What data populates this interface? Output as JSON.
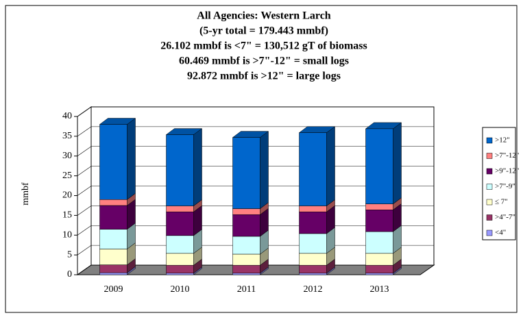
{
  "chart_data": {
    "type": "bar3d_stacked",
    "title": [
      "All Agencies: Western Larch",
      "(5-yr total = 179.443 mmbf)",
      "26.102 mmbf is <7\" = 130,512 gT of biomass",
      "60.469 mmbf is >7\"-12\" = small logs",
      "92.872 mmbf is >12\" = large logs"
    ],
    "y_label": "mmbf",
    "categories": [
      "2009",
      "2010",
      "2011",
      "2012",
      "2013"
    ],
    "series": [
      {
        "name": "<4\"",
        "color": "#9999ff",
        "values": [
          0.5,
          0.4,
          0.4,
          0.4,
          0.4
        ]
      },
      {
        "name": ">4\"-7\"",
        "color": "#993366",
        "values": [
          2,
          2,
          2,
          2,
          2
        ]
      },
      {
        "name": "≤ 7\"",
        "color": "#ffffcc",
        "values": [
          4,
          3,
          2.8,
          3,
          3
        ]
      },
      {
        "name": ">7\"-9\"",
        "color": "#ccffff",
        "values": [
          5,
          4.5,
          4.5,
          5,
          5.5
        ]
      },
      {
        "name": ">9\"-12\"",
        "color": "#660066",
        "values": [
          6,
          6,
          5.5,
          5.5,
          5.5
        ]
      },
      {
        "name": ">7\"-12\"",
        "color": "#ff8080",
        "values": [
          1.5,
          1.5,
          1.5,
          1.5,
          1.5
        ]
      },
      {
        "name": ">12\"",
        "color": "#0066cc",
        "values": [
          19,
          18,
          18,
          18.5,
          19
        ]
      }
    ],
    "ylim": [
      0,
      40
    ],
    "yticks": [
      0,
      5,
      10,
      15,
      20,
      25,
      30,
      35,
      40
    ],
    "legend": "right"
  }
}
